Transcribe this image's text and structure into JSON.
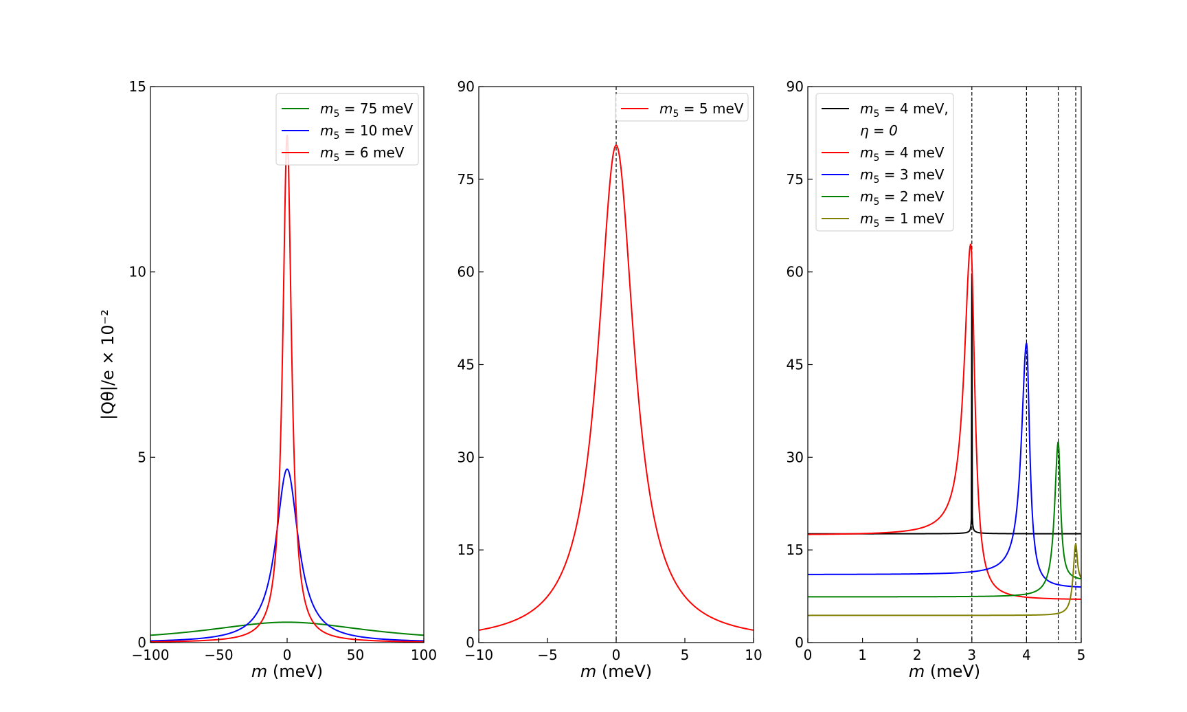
{
  "chart_data": [
    {
      "type": "line",
      "panel": "left",
      "xlabel_var": "m",
      "xlabel_unit": " (meV)",
      "ylabel": "|Qθ|/e × 10⁻²",
      "xlim": [
        -100,
        100
      ],
      "ylim": [
        0,
        15
      ],
      "xticks": [
        -100,
        -50,
        0,
        50,
        100
      ],
      "xtick_labels": [
        "−100",
        "−50",
        "0",
        "50",
        "100"
      ],
      "yticks": [
        0,
        5,
        10,
        15
      ],
      "ytick_labels": [
        "0",
        "5",
        "10",
        "15"
      ],
      "legend_position": "top-right",
      "vlines": [],
      "series": [
        {
          "name": "m5 = 75 meV",
          "label": "= 75 meV",
          "color": "#008000",
          "kind": "lorentz",
          "center": 0,
          "peak": 0.55,
          "width": 75,
          "floor": 0
        },
        {
          "name": "m5 = 10 meV",
          "label": "= 10 meV",
          "color": "#0000ff",
          "kind": "lorentz",
          "center": 0,
          "peak": 4.68,
          "width": 10,
          "floor": 0
        },
        {
          "name": "m5 = 6 meV",
          "label": "= 6 meV",
          "color": "#ff0000",
          "kind": "lorentz",
          "center": 0,
          "peak": 13.7,
          "width": 3.9,
          "floor": 0
        }
      ]
    },
    {
      "type": "line",
      "panel": "middle",
      "xlabel_var": "m",
      "xlabel_unit": " (meV)",
      "xlim": [
        -10,
        10
      ],
      "ylim": [
        0,
        90
      ],
      "xticks": [
        -10,
        -5,
        0,
        5,
        10
      ],
      "xtick_labels": [
        "−10",
        "−5",
        "0",
        "5",
        "10"
      ],
      "yticks": [
        0,
        15,
        30,
        45,
        60,
        75,
        90
      ],
      "ytick_labels": [
        "0",
        "15",
        "30",
        "45",
        "60",
        "75",
        "90"
      ],
      "legend_position": "top-right",
      "vlines": [
        0
      ],
      "series": [
        {
          "name": "m5 = 5 meV",
          "label": "= 5 meV",
          "color": "#ff0000",
          "kind": "lorentz",
          "center": 0,
          "peak": 80.5,
          "width": 1.6,
          "floor": 0
        }
      ]
    },
    {
      "type": "line",
      "panel": "right",
      "xlabel_var": "m",
      "xlabel_unit": " (meV)",
      "xlim": [
        0,
        5
      ],
      "ylim": [
        0,
        90
      ],
      "xticks": [
        0,
        1,
        2,
        3,
        4,
        5
      ],
      "xtick_labels": [
        "0",
        "1",
        "2",
        "3",
        "4",
        "5"
      ],
      "yticks": [
        0,
        15,
        30,
        45,
        60,
        75,
        90
      ],
      "ytick_labels": [
        "0",
        "15",
        "30",
        "45",
        "60",
        "75",
        "90"
      ],
      "legend_position": "top-left",
      "vlines": [
        3.0,
        4.0,
        4.58,
        4.9
      ],
      "series": [
        {
          "name": "m5 = 4 meV, η = 0",
          "label": "= 4 meV,",
          "label2": "η = 0",
          "color": "#000000",
          "kind": "diverge",
          "center": 3.0,
          "floor": 17.6,
          "scale": 0.022,
          "width": 0.03
        },
        {
          "name": "m5 = 4 meV",
          "label": "= 4 meV",
          "color": "#ff0000",
          "kind": "peak",
          "center": 2.98,
          "peak": 64.5,
          "floor": 17.4,
          "right": 6.9,
          "width": 0.09
        },
        {
          "name": "m5 = 3 meV",
          "label": "= 3 meV",
          "color": "#0000ff",
          "kind": "peak",
          "center": 4.0,
          "peak": 48.5,
          "floor": 11.0,
          "right": 8.8,
          "width": 0.07
        },
        {
          "name": "m5 = 2 meV",
          "label": "= 2 meV",
          "color": "#008000",
          "kind": "peak",
          "center": 4.58,
          "peak": 32.5,
          "floor": 7.4,
          "right": 10.0,
          "width": 0.05
        },
        {
          "name": "m5 = 1 meV",
          "label": "= 1 meV",
          "color": "#808000",
          "kind": "peak",
          "center": 4.9,
          "peak": 16.0,
          "floor": 4.4,
          "right": 9.8,
          "width": 0.035
        }
      ]
    }
  ]
}
